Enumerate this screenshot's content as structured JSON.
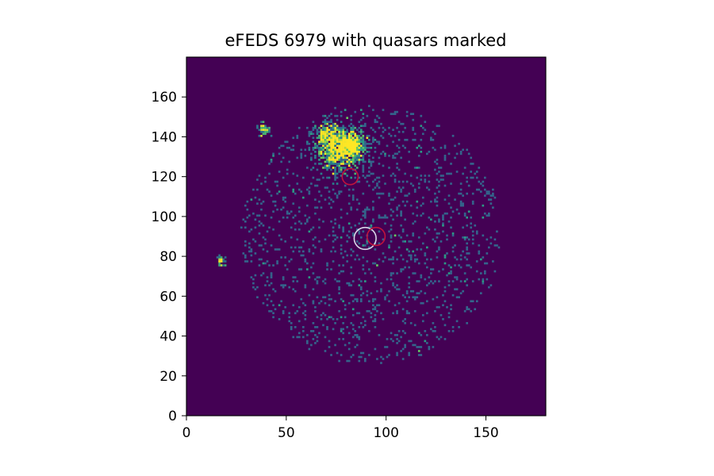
{
  "chart_data": {
    "type": "heatmap",
    "title": "eFEDS 6979 with quasars marked",
    "xlabel": "",
    "ylabel": "",
    "xlim": [
      0,
      180
    ],
    "ylim": [
      0,
      180
    ],
    "x_ticks": [
      0,
      50,
      100,
      150
    ],
    "x_tick_labels": [
      "0",
      "50",
      "100",
      "150"
    ],
    "y_ticks": [
      0,
      20,
      40,
      60,
      80,
      100,
      120,
      140,
      160
    ],
    "y_tick_labels": [
      "0",
      "20",
      "40",
      "60",
      "80",
      "100",
      "120",
      "140",
      "160"
    ],
    "colormap": "viridis",
    "background_color": "#440154",
    "grid": false,
    "markers": [
      {
        "x": 89.5,
        "y": 89,
        "radius": 5.5,
        "color": "#d8d8e8"
      },
      {
        "x": 95,
        "y": 90,
        "radius": 4.5,
        "color": "#c0143c"
      },
      {
        "x": 82,
        "y": 120,
        "radius": 4.0,
        "color": "#c0143c"
      }
    ],
    "hotspots": [
      {
        "x": 75,
        "y": 133,
        "radius": 10,
        "intensity": 0.95
      },
      {
        "x": 70,
        "y": 140,
        "radius": 6,
        "intensity": 0.7
      },
      {
        "x": 38,
        "y": 143,
        "radius": 3,
        "intensity": 0.8
      },
      {
        "x": 17,
        "y": 77,
        "radius": 2.5,
        "intensity": 0.75
      }
    ],
    "diffuse_clusters": [
      {
        "x": 82,
        "y": 135,
        "spread": 22,
        "count": 900
      },
      {
        "x": 92,
        "y": 90,
        "spread": 65,
        "count": 1500
      }
    ]
  }
}
